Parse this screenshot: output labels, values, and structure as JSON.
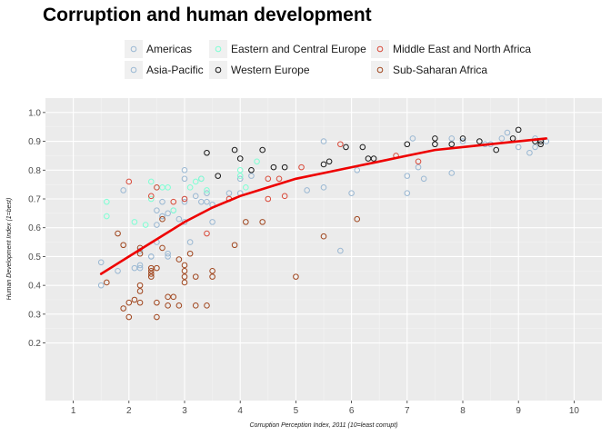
{
  "chart_data": {
    "type": "scatter",
    "title": "Corruption and human development",
    "xlabel": "Corruption Perception Index, 2011 (10=least corrupt)",
    "ylabel": "Human Development Index (1=best)",
    "xlim": [
      0.5,
      10.5
    ],
    "ylim": [
      0.0,
      1.05
    ],
    "x_ticks": [
      "1",
      "2",
      "3",
      "4",
      "5",
      "6",
      "7",
      "8",
      "9",
      "10"
    ],
    "y_ticks": [
      "0.2",
      "0.3",
      "0.4",
      "0.5",
      "0.6",
      "0.7",
      "0.8",
      "0.9",
      "1.0"
    ],
    "grid": true,
    "legend_position": "top",
    "series": [
      {
        "name": "Americas",
        "color": "#9ab8d3",
        "points": [
          [
            1.5,
            0.48
          ],
          [
            1.5,
            0.4
          ],
          [
            1.8,
            0.45
          ],
          [
            1.9,
            0.73
          ],
          [
            2.2,
            0.47
          ],
          [
            2.2,
            0.46
          ],
          [
            2.4,
            0.5
          ],
          [
            2.5,
            0.61
          ],
          [
            2.5,
            0.66
          ],
          [
            2.6,
            0.69
          ],
          [
            2.6,
            0.64
          ],
          [
            2.7,
            0.51
          ],
          [
            2.7,
            0.65
          ],
          [
            2.9,
            0.63
          ],
          [
            3.0,
            0.8
          ],
          [
            3.0,
            0.77
          ],
          [
            3.0,
            0.69
          ],
          [
            3.1,
            0.55
          ],
          [
            3.2,
            0.71
          ],
          [
            3.3,
            0.77
          ],
          [
            3.4,
            0.72
          ],
          [
            3.5,
            0.62
          ],
          [
            3.8,
            0.72
          ],
          [
            4.0,
            0.77
          ],
          [
            4.2,
            0.78
          ],
          [
            5.5,
            0.9
          ],
          [
            5.5,
            0.74
          ],
          [
            5.8,
            0.52
          ],
          [
            6.0,
            0.72
          ],
          [
            6.1,
            0.8
          ],
          [
            7.0,
            0.72
          ],
          [
            7.0,
            0.78
          ],
          [
            7.2,
            0.81
          ],
          [
            7.3,
            0.77
          ],
          [
            7.8,
            0.79
          ],
          [
            7.8,
            0.91
          ],
          [
            8.5,
            0.89
          ],
          [
            8.7,
            0.91
          ],
          [
            9.0,
            0.88
          ],
          [
            9.2,
            0.86
          ],
          [
            9.3,
            0.88
          ],
          [
            9.5,
            0.9
          ]
        ]
      },
      {
        "name": "Asia-Pacific",
        "color": "#9ab8d3",
        "points": [
          [
            2.1,
            0.46
          ],
          [
            2.2,
            0.52
          ],
          [
            2.4,
            0.5
          ],
          [
            2.5,
            0.55
          ],
          [
            2.6,
            0.64
          ],
          [
            2.7,
            0.5
          ],
          [
            2.8,
            0.66
          ],
          [
            3.0,
            0.62
          ],
          [
            3.0,
            0.7
          ],
          [
            3.3,
            0.69
          ],
          [
            3.4,
            0.69
          ],
          [
            3.5,
            0.68
          ],
          [
            4.0,
            0.72
          ],
          [
            5.2,
            0.73
          ],
          [
            7.1,
            0.91
          ],
          [
            8.0,
            0.9
          ],
          [
            8.4,
            0.89
          ],
          [
            8.8,
            0.93
          ],
          [
            9.3,
            0.91
          ]
        ]
      },
      {
        "name": "Eastern and Central Europe",
        "color": "#7fffd4",
        "points": [
          [
            1.6,
            0.69
          ],
          [
            1.6,
            0.64
          ],
          [
            2.1,
            0.62
          ],
          [
            2.3,
            0.61
          ],
          [
            2.4,
            0.7
          ],
          [
            2.4,
            0.76
          ],
          [
            2.5,
            0.74
          ],
          [
            2.6,
            0.74
          ],
          [
            2.7,
            0.74
          ],
          [
            2.8,
            0.66
          ],
          [
            3.1,
            0.74
          ],
          [
            3.2,
            0.76
          ],
          [
            3.3,
            0.77
          ],
          [
            3.4,
            0.73
          ],
          [
            4.0,
            0.78
          ],
          [
            4.0,
            0.8
          ],
          [
            4.1,
            0.74
          ],
          [
            4.3,
            0.83
          ]
        ]
      },
      {
        "name": "Western Europe",
        "color": "#1a1a1a",
        "points": [
          [
            3.4,
            0.86
          ],
          [
            3.6,
            0.78
          ],
          [
            3.9,
            0.87
          ],
          [
            4.0,
            0.84
          ],
          [
            4.2,
            0.8
          ],
          [
            4.4,
            0.87
          ],
          [
            4.6,
            0.81
          ],
          [
            4.8,
            0.81
          ],
          [
            5.5,
            0.82
          ],
          [
            5.6,
            0.83
          ],
          [
            5.9,
            0.88
          ],
          [
            6.2,
            0.88
          ],
          [
            6.3,
            0.84
          ],
          [
            6.4,
            0.84
          ],
          [
            7.0,
            0.89
          ],
          [
            7.5,
            0.91
          ],
          [
            7.5,
            0.89
          ],
          [
            7.8,
            0.89
          ],
          [
            8.0,
            0.91
          ],
          [
            8.3,
            0.9
          ],
          [
            8.6,
            0.87
          ],
          [
            8.9,
            0.91
          ],
          [
            9.0,
            0.94
          ],
          [
            9.3,
            0.9
          ],
          [
            9.4,
            0.89
          ],
          [
            9.4,
            0.9
          ]
        ]
      },
      {
        "name": "Middle East and North Africa",
        "color": "#d94a3a",
        "points": [
          [
            2.0,
            0.76
          ],
          [
            2.4,
            0.71
          ],
          [
            2.5,
            0.74
          ],
          [
            2.8,
            0.69
          ],
          [
            3.0,
            0.7
          ],
          [
            3.4,
            0.58
          ],
          [
            3.8,
            0.7
          ],
          [
            4.5,
            0.7
          ],
          [
            4.5,
            0.77
          ],
          [
            4.7,
            0.77
          ],
          [
            4.8,
            0.71
          ],
          [
            5.1,
            0.81
          ],
          [
            5.8,
            0.89
          ],
          [
            6.8,
            0.85
          ],
          [
            7.2,
            0.83
          ]
        ]
      },
      {
        "name": "Sub-Saharan Africa",
        "color": "#a0461e",
        "points": [
          [
            1.6,
            0.41
          ],
          [
            1.8,
            0.58
          ],
          [
            1.9,
            0.54
          ],
          [
            1.9,
            0.32
          ],
          [
            2.0,
            0.29
          ],
          [
            2.0,
            0.34
          ],
          [
            2.1,
            0.35
          ],
          [
            2.2,
            0.34
          ],
          [
            2.2,
            0.4
          ],
          [
            2.2,
            0.38
          ],
          [
            2.2,
            0.51
          ],
          [
            2.2,
            0.53
          ],
          [
            2.4,
            0.43
          ],
          [
            2.4,
            0.45
          ],
          [
            2.4,
            0.46
          ],
          [
            2.4,
            0.44
          ],
          [
            2.5,
            0.29
          ],
          [
            2.5,
            0.34
          ],
          [
            2.5,
            0.46
          ],
          [
            2.6,
            0.53
          ],
          [
            2.6,
            0.63
          ],
          [
            2.7,
            0.36
          ],
          [
            2.7,
            0.33
          ],
          [
            2.8,
            0.36
          ],
          [
            2.9,
            0.33
          ],
          [
            2.9,
            0.49
          ],
          [
            3.0,
            0.41
          ],
          [
            3.0,
            0.43
          ],
          [
            3.0,
            0.47
          ],
          [
            3.0,
            0.45
          ],
          [
            3.1,
            0.51
          ],
          [
            3.2,
            0.43
          ],
          [
            3.2,
            0.33
          ],
          [
            3.4,
            0.33
          ],
          [
            3.5,
            0.45
          ],
          [
            3.5,
            0.43
          ],
          [
            3.9,
            0.54
          ],
          [
            4.1,
            0.62
          ],
          [
            4.4,
            0.62
          ],
          [
            5.0,
            0.43
          ],
          [
            5.5,
            0.57
          ],
          [
            6.1,
            0.63
          ]
        ]
      }
    ],
    "trend_line": {
      "color": "#ee0000",
      "points": [
        [
          1.5,
          0.44
        ],
        [
          2.0,
          0.5
        ],
        [
          2.5,
          0.56
        ],
        [
          3.0,
          0.62
        ],
        [
          3.5,
          0.67
        ],
        [
          4.0,
          0.71
        ],
        [
          4.5,
          0.74
        ],
        [
          5.0,
          0.77
        ],
        [
          5.5,
          0.79
        ],
        [
          6.0,
          0.81
        ],
        [
          6.5,
          0.83
        ],
        [
          7.0,
          0.85
        ],
        [
          7.5,
          0.87
        ],
        [
          8.0,
          0.88
        ],
        [
          8.5,
          0.89
        ],
        [
          9.0,
          0.9
        ],
        [
          9.5,
          0.91
        ]
      ]
    }
  }
}
